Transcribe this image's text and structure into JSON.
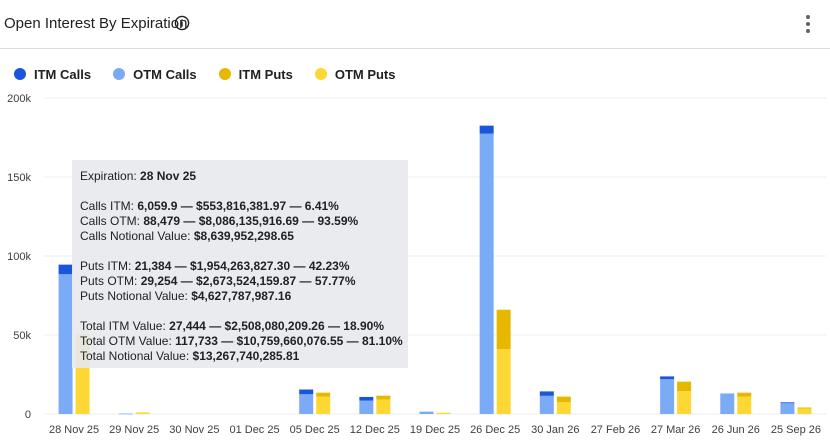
{
  "header": {
    "title": "Open Interest By Expiration"
  },
  "chart_data": {
    "type": "bar",
    "stacked": true,
    "categories": [
      "28 Nov 25",
      "29 Nov 25",
      "30 Nov 25",
      "01 Dec 25",
      "05 Dec 25",
      "12 Dec 25",
      "19 Dec 25",
      "26 Dec 25",
      "30 Jan 26",
      "27 Feb 26",
      "27 Mar 26",
      "26 Jun 26",
      "25 Sep 26"
    ],
    "groups": [
      {
        "stack": "calls",
        "series": [
          {
            "name": "OTM Calls",
            "color": "#7baaf7",
            "values": [
              88479,
              300,
              0,
              0,
              12500,
              8500,
              1500,
              177500,
              11500,
              0,
              22000,
              13000,
              7000
            ]
          },
          {
            "name": "ITM Calls",
            "color": "#1a56db",
            "values": [
              6060,
              0,
              0,
              0,
              3000,
              2300,
              0,
              5000,
              2800,
              0,
              1800,
              0,
              400
            ]
          }
        ]
      },
      {
        "stack": "puts",
        "series": [
          {
            "name": "OTM Puts",
            "color": "#fdd835",
            "values": [
              29254,
              1000,
              0,
              0,
              11000,
              9200,
              800,
              41000,
              7500,
              0,
              14500,
              11000,
              3500
            ]
          },
          {
            "name": "ITM Puts",
            "color": "#e6b800",
            "values": [
              21384,
              0,
              0,
              0,
              2500,
              2400,
              0,
              25000,
              3500,
              0,
              6000,
              2500,
              600
            ]
          }
        ]
      }
    ],
    "legend": {
      "position": "top-left",
      "items": [
        {
          "name": "ITM Calls",
          "color": "#1a56db"
        },
        {
          "name": "OTM Calls",
          "color": "#7baaf7"
        },
        {
          "name": "ITM Puts",
          "color": "#e6b800"
        },
        {
          "name": "OTM Puts",
          "color": "#fdd835"
        }
      ]
    },
    "ylim": [
      0,
      200000
    ],
    "yticks": [
      0,
      50000,
      100000,
      150000,
      200000
    ],
    "ytick_labels": [
      "0",
      "50k",
      "100k",
      "150k",
      "200k"
    ],
    "grid": true
  },
  "tooltip": {
    "expiration_label": "Expiration: ",
    "expiration_value": "28 Nov 25",
    "calls_itm_label": "Calls ITM: ",
    "calls_itm_value": "6,059.9 — $553,816,381.97 — 6.41%",
    "calls_otm_label": "Calls OTM: ",
    "calls_otm_value": "88,479 — $8,086,135,916.69 — 93.59%",
    "calls_notional_label": "Calls Notional Value: ",
    "calls_notional_value": "$8,639,952,298.65",
    "puts_itm_label": "Puts ITM: ",
    "puts_itm_value": "21,384 — $1,954,263,827.30 — 42.23%",
    "puts_otm_label": "Puts OTM: ",
    "puts_otm_value": "29,254 — $2,673,524,159.87 — 57.77%",
    "puts_notional_label": "Puts Notional Value: ",
    "puts_notional_value": "$4,627,787,987.16",
    "total_itm_label": "Total ITM Value: ",
    "total_itm_value": "27,444 — $2,508,080,209.26 — 18.90%",
    "total_otm_label": "Total OTM Value: ",
    "total_otm_value": "117,733 — $10,759,660,076.55 — 81.10%",
    "total_notional_label": "Total Notional Value: ",
    "total_notional_value": "$13,267,740,285.81"
  }
}
